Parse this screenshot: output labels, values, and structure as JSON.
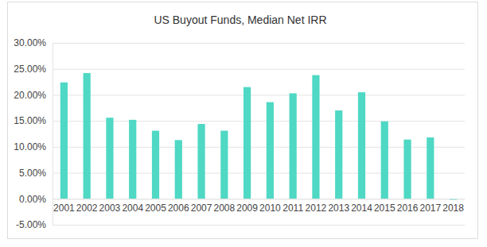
{
  "chart_data": {
    "type": "bar",
    "title": "US Buyout Funds, Median Net IRR",
    "categories": [
      "2001",
      "2002",
      "2003",
      "2004",
      "2005",
      "2006",
      "2007",
      "2008",
      "2009",
      "2010",
      "2011",
      "2012",
      "2013",
      "2014",
      "2015",
      "2016",
      "2017",
      "2018"
    ],
    "values": [
      22.4,
      24.2,
      15.6,
      15.2,
      13.1,
      11.3,
      14.4,
      13.1,
      21.5,
      18.6,
      20.3,
      23.8,
      17.0,
      20.5,
      14.9,
      11.4,
      11.8,
      -0.2
    ],
    "color": "#4fd8c4",
    "ylim": [
      -5,
      30
    ],
    "yticks": [
      {
        "value": -5,
        "label": "-5.00%"
      },
      {
        "value": 0,
        "label": "0.00%"
      },
      {
        "value": 5,
        "label": "5.00%"
      },
      {
        "value": 10,
        "label": "10.00%"
      },
      {
        "value": 15,
        "label": "15.00%"
      },
      {
        "value": 20,
        "label": "20.00%"
      },
      {
        "value": 25,
        "label": "25.00%"
      },
      {
        "value": 30,
        "label": "30.00%"
      }
    ],
    "grid": true
  }
}
